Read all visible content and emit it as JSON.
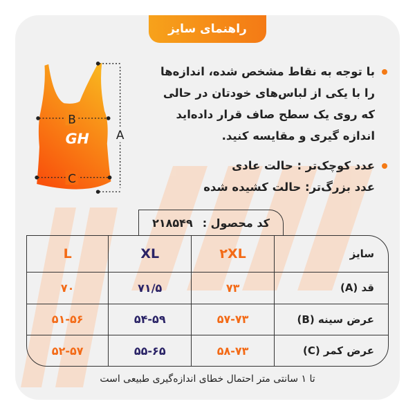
{
  "title": "راهنمای سایز",
  "instructions": [
    "با توجه به نقاط مشخص شده، اندازه‌ها را با یکی از لباس‌های خودتان در حالی که روی یک سطح صاف قرار داده‌اید اندازه گیری و مقایسه کنید.",
    "عدد کوچک‌تر : حالت عادی\nعدد بزرگ‌تر: حالت کشیده شده"
  ],
  "diagram": {
    "labels": {
      "a": "A",
      "b": "B",
      "c": "C"
    },
    "logo": "GH"
  },
  "product_code": {
    "label": "کد محصول :",
    "value": "۲۱۸۵۴۹"
  },
  "table": {
    "headers": [
      "سایز",
      "۲XL",
      "XL",
      "L"
    ],
    "rows": [
      [
        "قد (A)",
        "۷۳",
        "۷۱/۵",
        "۷۰"
      ],
      [
        "عرض سینه (B)",
        "۵۷-۷۳",
        "۵۴-۵۹",
        "۵۱-۵۶"
      ],
      [
        "عرض کمر (C)",
        "۵۸-۷۳",
        "۵۵-۶۵",
        "۵۲-۵۷"
      ]
    ]
  },
  "footnote": "تا ۱ سانتی متر احتمال خطای اندازه‌گیری طبیعی است",
  "colors": {
    "accent": "#f47a15",
    "navy": "#2a2366",
    "background": "#f1f1f1"
  }
}
